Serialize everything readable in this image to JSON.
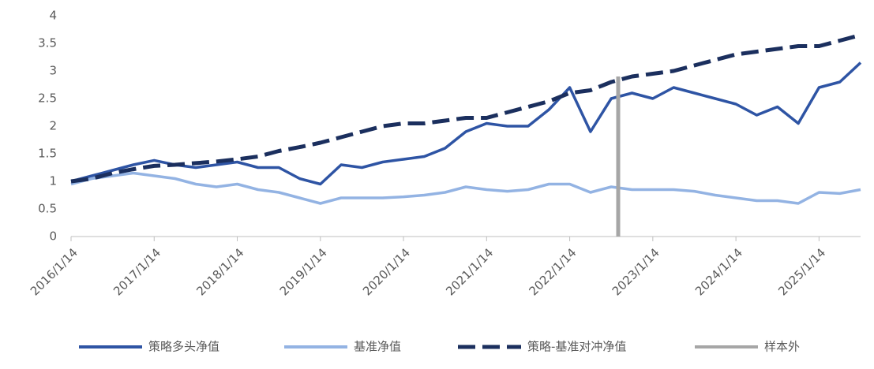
{
  "chart_data": {
    "type": "line",
    "x": [
      "2016/1/14",
      "2016/4/14",
      "2016/7/14",
      "2016/10/14",
      "2017/1/14",
      "2017/4/14",
      "2017/7/14",
      "2017/10/14",
      "2018/1/14",
      "2018/4/14",
      "2018/7/14",
      "2018/10/14",
      "2019/1/14",
      "2019/4/14",
      "2019/7/14",
      "2019/10/14",
      "2020/1/14",
      "2020/4/14",
      "2020/7/14",
      "2020/10/14",
      "2021/1/14",
      "2021/4/14",
      "2021/7/14",
      "2021/10/14",
      "2022/1/14",
      "2022/4/14",
      "2022/7/14",
      "2022/10/14",
      "2023/1/14",
      "2023/4/14",
      "2023/7/14",
      "2023/10/14",
      "2024/1/14",
      "2024/4/14",
      "2024/7/14",
      "2024/10/14",
      "2025/1/14",
      "2025/4/14",
      "2025/7/14"
    ],
    "xlim": [
      "2016/1/14",
      "2025/7/14"
    ],
    "xticks": [
      "2016/1/14",
      "2017/1/14",
      "2018/1/14",
      "2019/1/14",
      "2020/1/14",
      "2021/1/14",
      "2022/1/14",
      "2023/1/14",
      "2024/1/14",
      "2025/1/14"
    ],
    "ylim": [
      0,
      4
    ],
    "yticks": [
      0,
      0.5,
      1,
      1.5,
      2,
      2.5,
      3,
      3.5,
      4
    ],
    "series": [
      {
        "name": "策略多头净值",
        "color": "#2e54a4",
        "dash": false,
        "values": [
          1.0,
          1.1,
          1.2,
          1.3,
          1.38,
          1.3,
          1.25,
          1.3,
          1.35,
          1.25,
          1.25,
          1.05,
          0.95,
          1.3,
          1.25,
          1.35,
          1.4,
          1.45,
          1.6,
          1.9,
          2.05,
          2.0,
          2.0,
          2.3,
          2.7,
          1.9,
          2.5,
          2.6,
          2.5,
          2.7,
          2.6,
          2.5,
          2.4,
          2.2,
          2.35,
          2.05,
          2.7,
          2.8,
          3.15
        ]
      },
      {
        "name": "基准净值",
        "color": "#93b3e3",
        "dash": false,
        "values": [
          0.95,
          1.05,
          1.1,
          1.15,
          1.1,
          1.05,
          0.95,
          0.9,
          0.95,
          0.85,
          0.8,
          0.7,
          0.6,
          0.7,
          0.7,
          0.7,
          0.72,
          0.75,
          0.8,
          0.9,
          0.85,
          0.82,
          0.85,
          0.95,
          0.95,
          0.8,
          0.9,
          0.85,
          0.85,
          0.85,
          0.82,
          0.75,
          0.7,
          0.65,
          0.65,
          0.6,
          0.8,
          0.78,
          0.85
        ]
      },
      {
        "name": "策略-基准对冲净值",
        "color": "#1b2f5e",
        "dash": true,
        "values": [
          1.0,
          1.05,
          1.15,
          1.22,
          1.28,
          1.3,
          1.33,
          1.36,
          1.4,
          1.45,
          1.55,
          1.62,
          1.7,
          1.8,
          1.9,
          2.0,
          2.05,
          2.05,
          2.1,
          2.15,
          2.15,
          2.25,
          2.35,
          2.45,
          2.6,
          2.65,
          2.8,
          2.9,
          2.95,
          3.0,
          3.1,
          3.2,
          3.3,
          3.35,
          3.4,
          3.45,
          3.45,
          3.55,
          3.65
        ]
      },
      {
        "name": "样本外",
        "color": "#a6a6a6",
        "dash": false,
        "x": [
          "2022/8/14",
          "2022/8/14"
        ],
        "values": [
          0,
          2.9
        ]
      }
    ],
    "legend": "bottom"
  }
}
